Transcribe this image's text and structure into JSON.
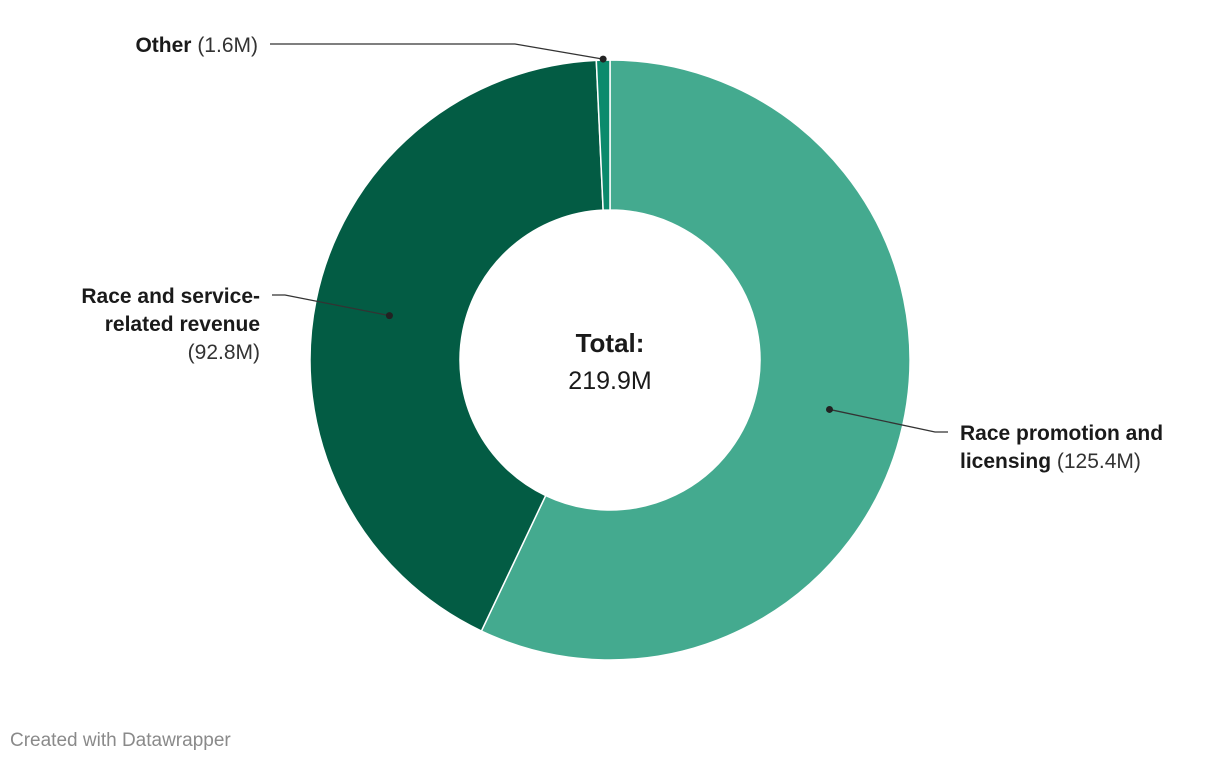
{
  "chart_data": {
    "type": "pie",
    "donut": true,
    "unit": "M",
    "slices": [
      {
        "label_lines": [
          "Race promotion and",
          "licensing"
        ],
        "value_text": "(125.4M)",
        "value": 125.4,
        "color": "#44aa8f"
      },
      {
        "label_lines": [
          "Race and service-",
          "related revenue"
        ],
        "value_text": "(92.8M)",
        "value": 92.8,
        "color": "#035c44"
      },
      {
        "label_lines": [
          "Other"
        ],
        "value_text": "(1.6M)",
        "value": 1.6,
        "color": "#0b8a6c"
      }
    ],
    "center": {
      "title": "Total:",
      "value": "219.9M",
      "total": 219.9
    }
  },
  "footer": {
    "credit": "Created with Datawrapper"
  }
}
